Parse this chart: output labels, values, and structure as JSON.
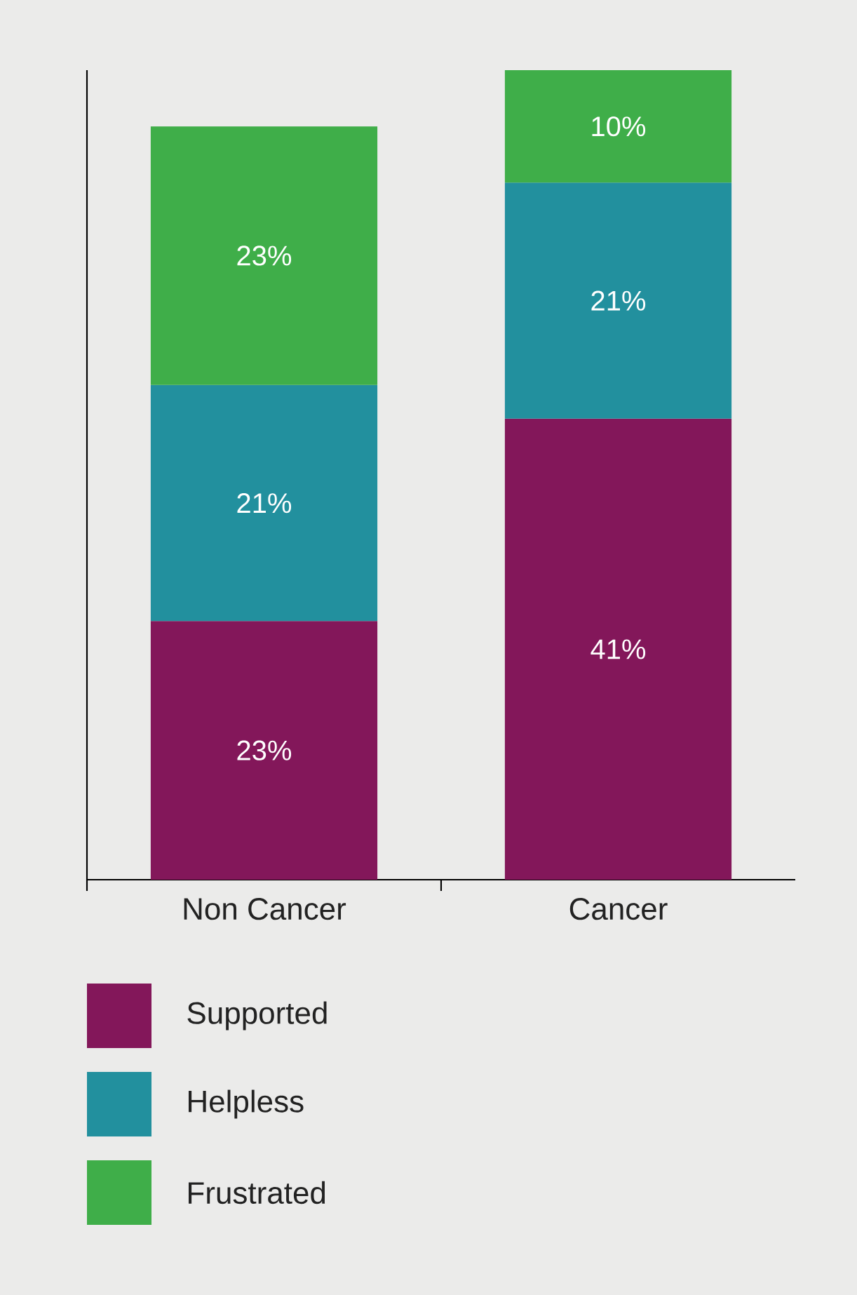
{
  "chart_data": {
    "type": "bar",
    "stacked": true,
    "categories": [
      "Non Cancer",
      "Cancer"
    ],
    "series": [
      {
        "name": "Supported",
        "color": "#83175a",
        "values": [
          23,
          41
        ],
        "value_labels": [
          "23%",
          "41%"
        ]
      },
      {
        "name": "Helpless",
        "color": "#22909e",
        "values": [
          21,
          21
        ],
        "value_labels": [
          "21%",
          "21%"
        ]
      },
      {
        "name": "Frustrated",
        "color": "#3fae49",
        "values": [
          23,
          10
        ],
        "value_labels": [
          "23%",
          "10%"
        ]
      }
    ],
    "legend": "bottom"
  }
}
